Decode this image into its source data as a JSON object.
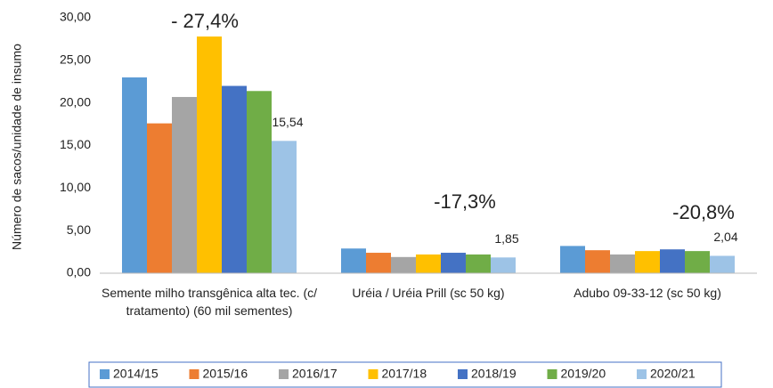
{
  "chart_data": {
    "type": "bar",
    "y_label": "Número de sacos/unidade de insumo",
    "categories": [
      "Semente milho transgênica  alta tec. (c/ tratamento) (60 mil sementes)",
      "Uréia / Uréia Prill (sc 50 kg)",
      "Adubo 09-33-12 (sc 50 kg)"
    ],
    "series": [
      {
        "name": "2014/15",
        "color": "#5b9bd5",
        "values": [
          23.0,
          2.9,
          3.2
        ]
      },
      {
        "name": "2015/16",
        "color": "#ed7d31",
        "values": [
          17.6,
          2.4,
          2.7
        ]
      },
      {
        "name": "2016/17",
        "color": "#a5a5a5",
        "values": [
          20.7,
          1.9,
          2.2
        ]
      },
      {
        "name": "2017/18",
        "color": "#ffc000",
        "values": [
          27.8,
          2.2,
          2.6
        ]
      },
      {
        "name": "2018/19",
        "color": "#4472c4",
        "values": [
          22.0,
          2.4,
          2.8
        ]
      },
      {
        "name": "2019/20",
        "color": "#70ad47",
        "values": [
          21.4,
          2.2,
          2.6
        ]
      },
      {
        "name": "2020/21",
        "color": "#9dc3e6",
        "values": [
          15.54,
          1.85,
          2.04
        ],
        "value_labels": [
          "15,54",
          "1,85",
          "2,04"
        ]
      }
    ],
    "annotations": [
      "- 27,4%",
      "-17,3%",
      "-20,8%"
    ],
    "ylim": [
      0,
      30
    ],
    "yticks": [
      {
        "value": 0,
        "label": "0,00"
      },
      {
        "value": 5,
        "label": "5,00"
      },
      {
        "value": 10,
        "label": "10,00"
      },
      {
        "value": 15,
        "label": "15,00"
      },
      {
        "value": 20,
        "label": "20,00"
      },
      {
        "value": 25,
        "label": "25,00"
      },
      {
        "value": 30,
        "label": "30,00"
      }
    ],
    "legend": "bottom"
  }
}
